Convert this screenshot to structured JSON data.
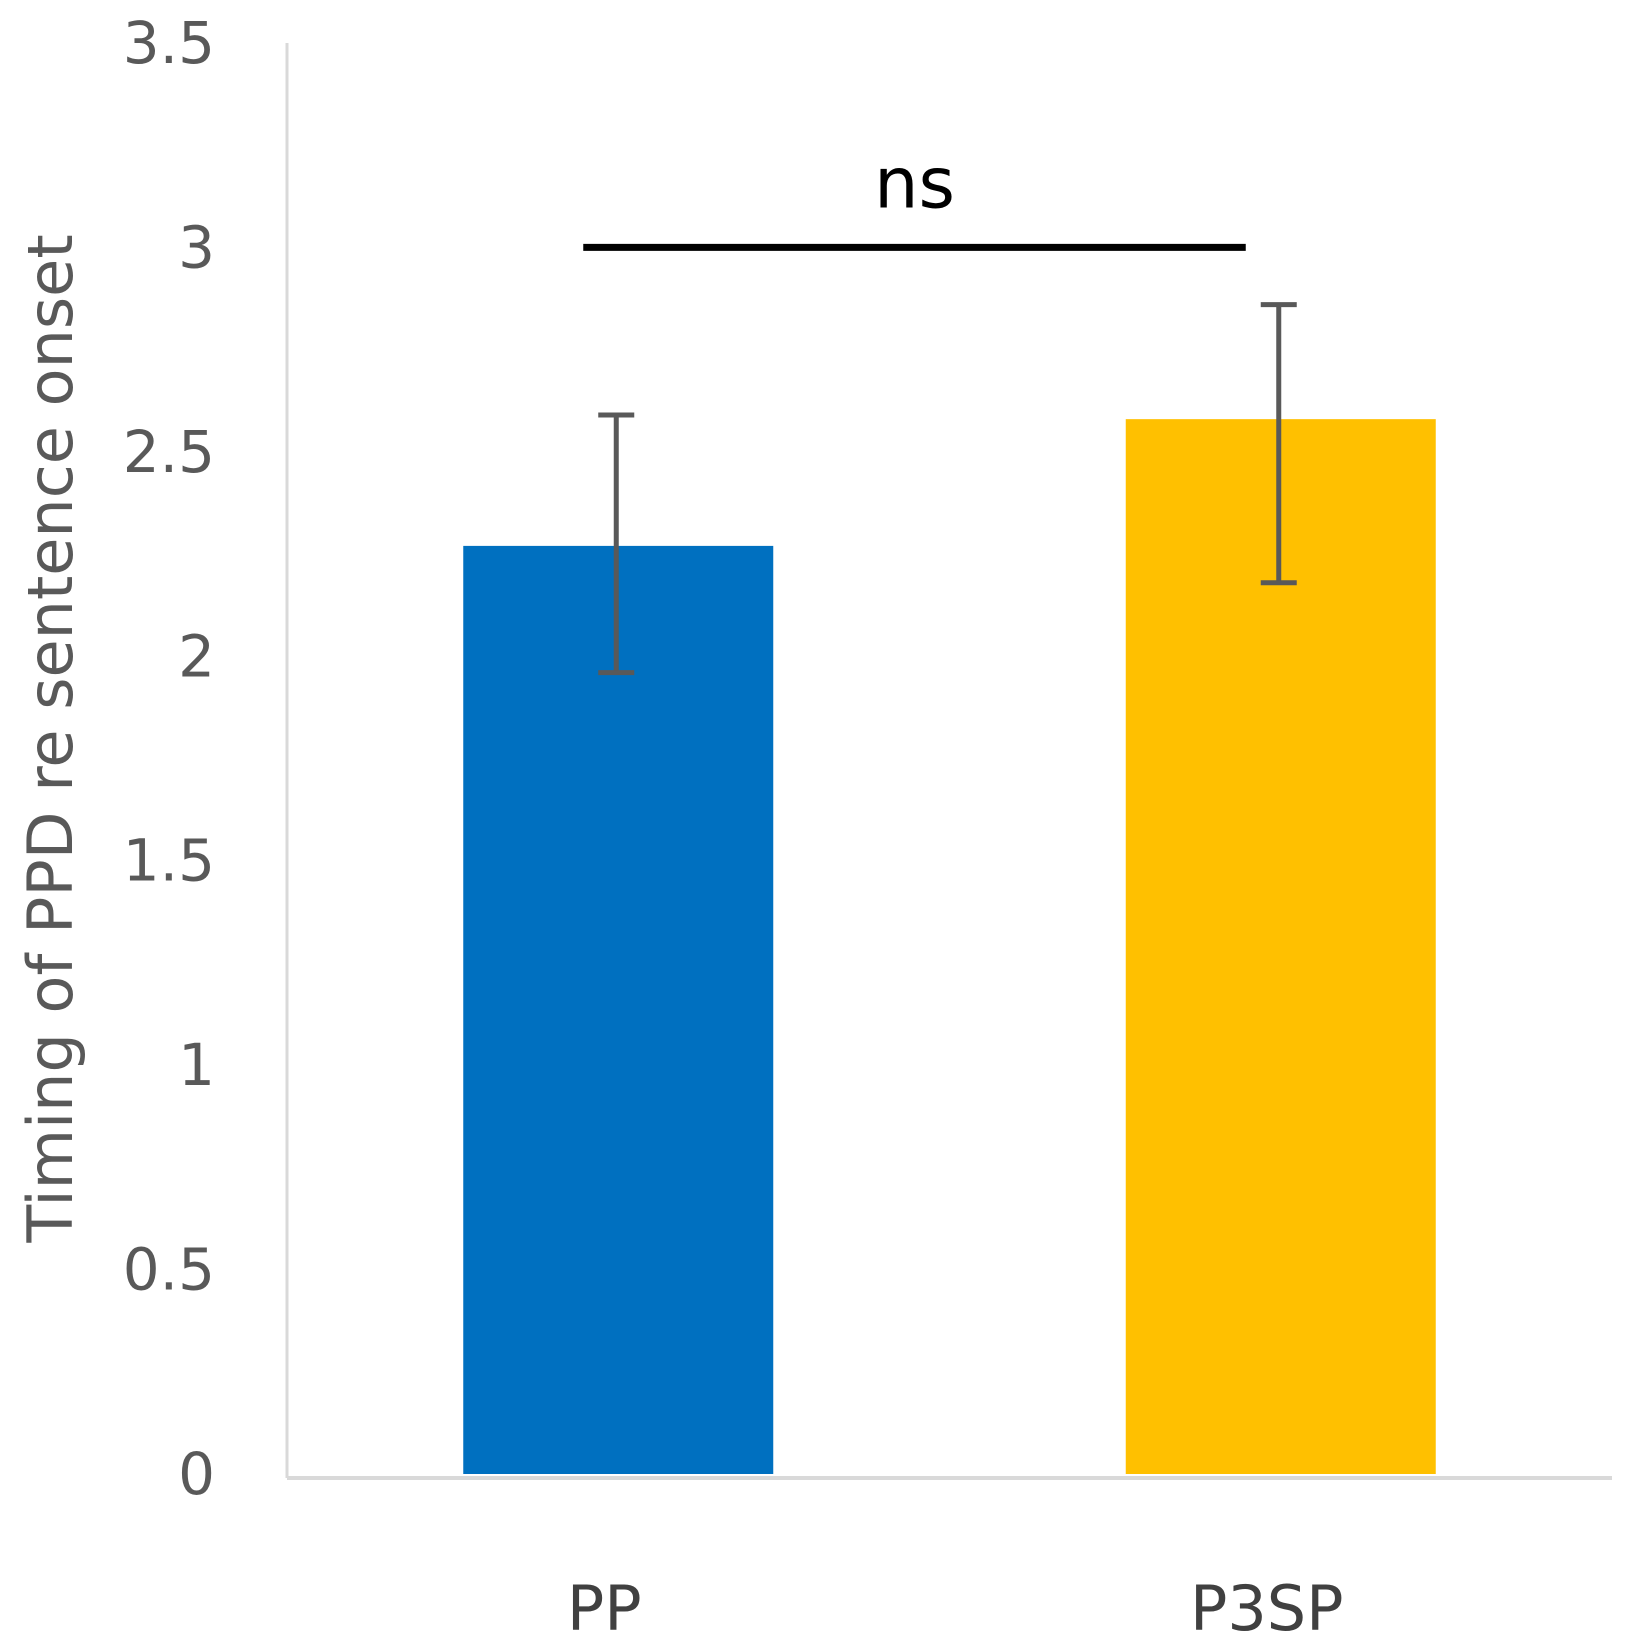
{
  "chart_data": {
    "type": "bar",
    "title": "",
    "xlabel": "",
    "ylabel": "Timing of PPD re sentence onset",
    "ylim": [
      0,
      3.5
    ],
    "yticks": [
      "0",
      "0.5",
      "1",
      "1.5",
      "2",
      "2.5",
      "3",
      "3.5"
    ],
    "ytick_values": [
      0,
      0.5,
      1,
      1.5,
      2,
      2.5,
      3,
      3.5
    ],
    "categories": [
      "PP",
      "P3SP"
    ],
    "values": [
      2.27,
      2.58
    ],
    "error_low": [
      1.96,
      2.18
    ],
    "error_high": [
      2.59,
      2.86
    ],
    "bar_colors": [
      "#0070C0",
      "#FFC000"
    ],
    "grid": false,
    "legend": "none",
    "annotation": {
      "text": "ns",
      "y_value": 3.0,
      "spans": [
        "PP",
        "P3SP"
      ]
    }
  },
  "colors": {
    "axis": "#d9d9d9",
    "tick_text": "#595959",
    "error_bar": "#595959",
    "annotation": "#000000"
  }
}
